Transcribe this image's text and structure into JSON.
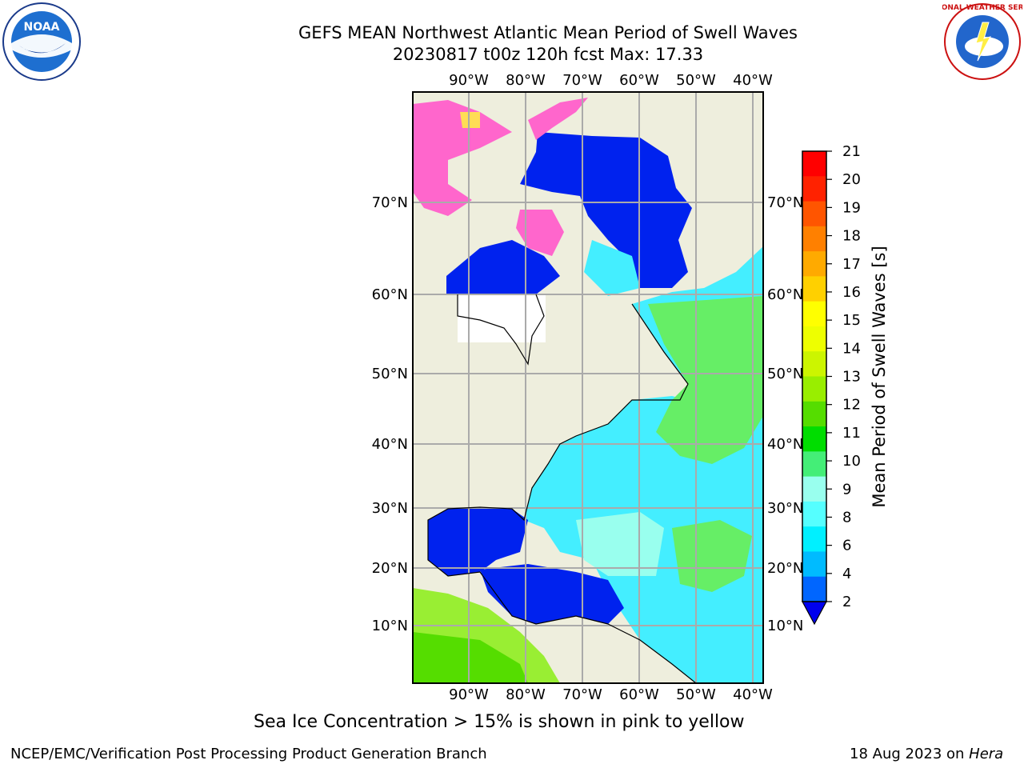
{
  "header": {
    "title_line1": "GEFS MEAN Northwest Atlantic Mean Period of Swell Waves",
    "title_line2": "20230817 t00z 120h fcst   Max: 17.33"
  },
  "logos": {
    "left_text": "NOAA",
    "right_text": "NATIONAL WEATHER SERVICE"
  },
  "map": {
    "lon_labels": [
      "90°W",
      "80°W",
      "70°W",
      "60°W",
      "50°W",
      "40°W"
    ],
    "lat_labels": [
      "70°N",
      "60°N",
      "50°N",
      "40°N",
      "30°N",
      "20°N",
      "10°N"
    ]
  },
  "colorbar": {
    "label": "Mean Period of Swell Waves [s]",
    "ticks": [
      "21",
      "20",
      "19",
      "18",
      "17",
      "16",
      "15",
      "14",
      "13",
      "12",
      "11",
      "10",
      "9",
      "8",
      "6",
      "4",
      "2"
    ],
    "colors": [
      "#ff0000",
      "#ff2200",
      "#ff5500",
      "#ff8000",
      "#ffaa00",
      "#ffd000",
      "#ffff00",
      "#eeff00",
      "#ccf500",
      "#99ee00",
      "#55dd00",
      "#00dd00",
      "#44ee77",
      "#99ffee",
      "#55ffff",
      "#00f0ff",
      "#00bbff",
      "#0066ff"
    ],
    "underflow_color": "#0000ee"
  },
  "caption": "Sea Ice Concentration > 15% is shown in pink to yellow",
  "footer": {
    "left": "NCEP/EMC/Verification Post Processing Product Generation Branch",
    "right_date": "18 Aug 2023 on ",
    "right_host": "Hera"
  },
  "colors": {
    "land": "#eeeedd",
    "ocean_low": "#0022ee",
    "ocean_mid": "#44eeff",
    "ocean_high": "#66ee66",
    "ice": "#ff66cc",
    "grid": "#aaaaaa"
  }
}
